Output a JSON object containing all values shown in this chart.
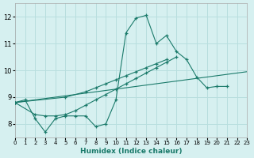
{
  "xlabel": "Humidex (Indice chaleur)",
  "bg_color": "#d6f0f0",
  "grid_color": "#b8dede",
  "line_color": "#1a7a6a",
  "xlim": [
    0,
    23
  ],
  "ylim": [
    7.5,
    12.5
  ],
  "yticks": [
    8,
    9,
    10,
    11,
    12
  ],
  "xticks": [
    0,
    1,
    2,
    3,
    4,
    5,
    6,
    7,
    8,
    9,
    10,
    11,
    12,
    13,
    14,
    15,
    16,
    17,
    18,
    19,
    20,
    21,
    22,
    23
  ],
  "series": [
    {
      "x": [
        0,
        1,
        2,
        3,
        4,
        5,
        6,
        7,
        8,
        9,
        10,
        11,
        12,
        13,
        14,
        15,
        16,
        17,
        18,
        19,
        20,
        21
      ],
      "y": [
        8.8,
        8.9,
        8.2,
        7.7,
        8.2,
        8.3,
        8.3,
        8.3,
        7.9,
        8.0,
        8.9,
        11.4,
        11.95,
        12.05,
        11.0,
        11.3,
        10.7,
        10.4,
        9.75,
        9.35,
        9.4,
        9.4
      ],
      "marker": true
    },
    {
      "x": [
        0,
        2,
        3,
        4,
        5,
        6,
        7,
        8,
        9,
        10,
        11,
        12,
        13,
        14,
        15,
        16
      ],
      "y": [
        8.8,
        8.35,
        8.3,
        8.3,
        8.35,
        8.5,
        8.7,
        8.9,
        9.1,
        9.3,
        9.5,
        9.7,
        9.9,
        10.1,
        10.3,
        10.5
      ],
      "marker": true
    },
    {
      "x": [
        0,
        5,
        7,
        8,
        9,
        10,
        11,
        12,
        13,
        14,
        15
      ],
      "y": [
        8.8,
        9.0,
        9.2,
        9.35,
        9.5,
        9.65,
        9.8,
        9.95,
        10.1,
        10.25,
        10.4
      ],
      "marker": true
    },
    {
      "x": [
        0,
        1,
        2,
        3,
        4,
        5,
        6,
        7,
        8,
        9,
        10,
        11,
        12,
        13,
        14,
        15,
        16,
        17,
        18,
        19,
        20,
        21,
        22,
        23
      ],
      "y": [
        8.8,
        8.85,
        8.9,
        8.95,
        9.0,
        9.05,
        9.1,
        9.15,
        9.2,
        9.25,
        9.3,
        9.35,
        9.4,
        9.45,
        9.5,
        9.55,
        9.6,
        9.65,
        9.7,
        9.75,
        9.8,
        9.85,
        9.9,
        9.95
      ],
      "marker": false
    }
  ]
}
